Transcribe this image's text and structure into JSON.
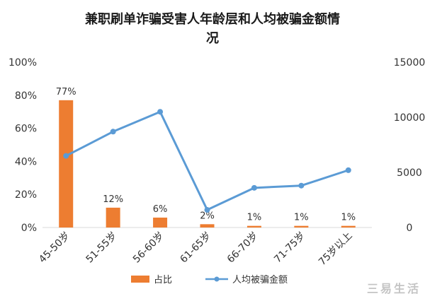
{
  "chart_data": {
    "type": "bar+line",
    "title_lines": [
      "兼职刷单诈骗受害人年龄层和人均被骗金额情",
      "况"
    ],
    "categories": [
      "45-50岁",
      "51-55岁",
      "56-60岁",
      "61-65岁",
      "66-70岁",
      "71-75岁",
      "75岁以上"
    ],
    "series": [
      {
        "name": "占比",
        "type": "bar",
        "axis": "left",
        "color": "#ed7d31",
        "values": [
          77,
          12,
          6,
          2,
          1,
          1,
          1
        ],
        "labels": [
          "77%",
          "12%",
          "6%",
          "2%",
          "1%",
          "1%",
          "1%"
        ]
      },
      {
        "name": "人均被骗金额",
        "type": "line",
        "axis": "right",
        "color": "#5b9bd5",
        "values": [
          6500,
          8700,
          10500,
          1600,
          3600,
          3800,
          5200
        ]
      }
    ],
    "y_left": {
      "min": 0,
      "max": 100,
      "ticks": [
        0,
        20,
        40,
        60,
        80,
        100
      ],
      "tick_labels": [
        "0%",
        "20%",
        "40%",
        "60%",
        "80%",
        "100%"
      ]
    },
    "y_right": {
      "min": 0,
      "max": 15000,
      "ticks": [
        0,
        5000,
        10000,
        15000
      ],
      "tick_labels": [
        "0",
        "5000",
        "10000",
        "15000"
      ]
    },
    "grid": false,
    "legend": "bottom"
  },
  "watermark": {
    "text": "三易生活"
  }
}
